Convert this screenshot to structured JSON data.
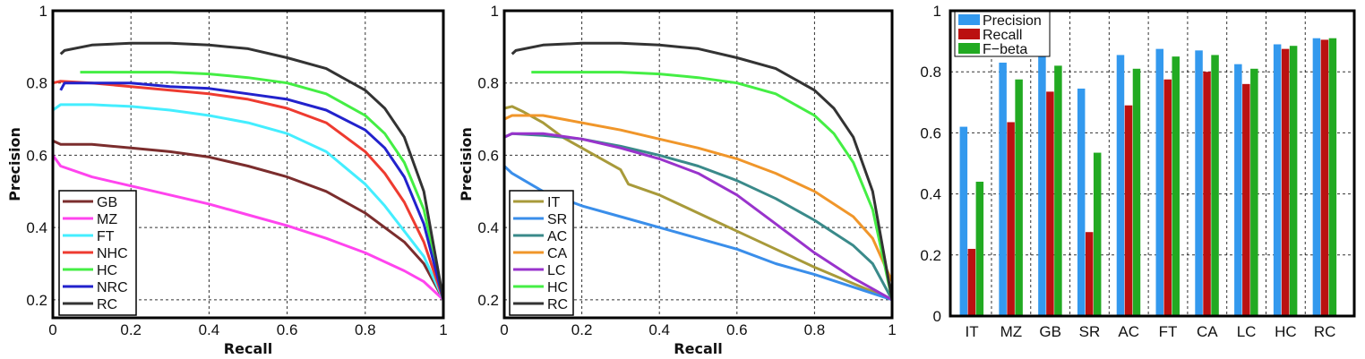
{
  "chart_data": [
    {
      "type": "line",
      "xlabel": "Recall",
      "ylabel": "Precision",
      "xlim": [
        0,
        1
      ],
      "ylim": [
        0.15,
        1
      ],
      "xticks": [
        "0",
        "0.2",
        "0.4",
        "0.6",
        "0.8",
        "1"
      ],
      "yticks": [
        "0.2",
        "0.4",
        "0.6",
        "0.8",
        "1"
      ],
      "grid": true,
      "legend": "bottom-left",
      "series": [
        {
          "name": "GB",
          "color": "#7b2d2d",
          "x": [
            0,
            0.02,
            0.1,
            0.2,
            0.3,
            0.4,
            0.5,
            0.6,
            0.7,
            0.8,
            0.9,
            0.95,
            1.0
          ],
          "y": [
            0.64,
            0.63,
            0.63,
            0.62,
            0.61,
            0.595,
            0.57,
            0.54,
            0.5,
            0.44,
            0.36,
            0.3,
            0.2
          ]
        },
        {
          "name": "MZ",
          "color": "#ff44ee",
          "x": [
            0,
            0.02,
            0.1,
            0.2,
            0.3,
            0.4,
            0.5,
            0.6,
            0.7,
            0.8,
            0.9,
            0.95,
            1.0
          ],
          "y": [
            0.6,
            0.57,
            0.54,
            0.515,
            0.49,
            0.465,
            0.435,
            0.405,
            0.37,
            0.33,
            0.28,
            0.25,
            0.2
          ]
        },
        {
          "name": "FT",
          "color": "#44eeff",
          "x": [
            0,
            0.02,
            0.1,
            0.2,
            0.3,
            0.4,
            0.5,
            0.6,
            0.7,
            0.8,
            0.85,
            0.9,
            0.95,
            1.0
          ],
          "y": [
            0.725,
            0.74,
            0.74,
            0.735,
            0.725,
            0.71,
            0.69,
            0.66,
            0.61,
            0.52,
            0.46,
            0.39,
            0.32,
            0.2
          ]
        },
        {
          "name": "NHC",
          "color": "#ee3b30",
          "x": [
            0,
            0.02,
            0.1,
            0.2,
            0.3,
            0.4,
            0.5,
            0.6,
            0.7,
            0.8,
            0.85,
            0.9,
            0.95,
            1.0
          ],
          "y": [
            0.8,
            0.805,
            0.8,
            0.79,
            0.78,
            0.77,
            0.755,
            0.73,
            0.69,
            0.61,
            0.55,
            0.47,
            0.36,
            0.2
          ]
        },
        {
          "name": "HC",
          "color": "#44ee44",
          "x": [
            0.07,
            0.1,
            0.2,
            0.3,
            0.4,
            0.5,
            0.6,
            0.7,
            0.8,
            0.85,
            0.9,
            0.95,
            1.0
          ],
          "y": [
            0.83,
            0.83,
            0.83,
            0.83,
            0.825,
            0.815,
            0.8,
            0.77,
            0.71,
            0.66,
            0.58,
            0.45,
            0.2
          ]
        },
        {
          "name": "NRC",
          "color": "#2222cc",
          "x": [
            0.02,
            0.03,
            0.1,
            0.2,
            0.3,
            0.4,
            0.5,
            0.6,
            0.7,
            0.8,
            0.85,
            0.9,
            0.95,
            1.0
          ],
          "y": [
            0.78,
            0.8,
            0.8,
            0.8,
            0.79,
            0.785,
            0.77,
            0.755,
            0.725,
            0.67,
            0.62,
            0.54,
            0.41,
            0.2
          ]
        },
        {
          "name": "RC",
          "color": "#333333",
          "x": [
            0.02,
            0.03,
            0.1,
            0.2,
            0.3,
            0.4,
            0.5,
            0.6,
            0.7,
            0.8,
            0.85,
            0.9,
            0.95,
            1.0
          ],
          "y": [
            0.88,
            0.89,
            0.905,
            0.91,
            0.91,
            0.905,
            0.895,
            0.87,
            0.84,
            0.78,
            0.73,
            0.65,
            0.5,
            0.2
          ]
        }
      ]
    },
    {
      "type": "line",
      "xlabel": "Recall",
      "ylabel": "Precision",
      "xlim": [
        0,
        1
      ],
      "ylim": [
        0.15,
        1
      ],
      "xticks": [
        "0",
        "0.2",
        "0.4",
        "0.6",
        "0.8",
        "1"
      ],
      "yticks": [
        "0.2",
        "0.4",
        "0.6",
        "0.8",
        "1"
      ],
      "grid": true,
      "legend": "bottom-left",
      "series": [
        {
          "name": "IT",
          "color": "#a89a3a",
          "x": [
            0,
            0.02,
            0.05,
            0.1,
            0.15,
            0.2,
            0.25,
            0.3,
            0.32,
            0.4,
            0.5,
            0.6,
            0.7,
            0.8,
            0.9,
            1.0
          ],
          "y": [
            0.73,
            0.735,
            0.72,
            0.69,
            0.65,
            0.62,
            0.59,
            0.56,
            0.52,
            0.49,
            0.44,
            0.39,
            0.34,
            0.29,
            0.245,
            0.2
          ]
        },
        {
          "name": "SR",
          "color": "#3a8eea",
          "x": [
            0,
            0.02,
            0.1,
            0.2,
            0.3,
            0.4,
            0.5,
            0.6,
            0.7,
            0.8,
            0.9,
            1.0
          ],
          "y": [
            0.57,
            0.55,
            0.5,
            0.46,
            0.43,
            0.4,
            0.37,
            0.34,
            0.3,
            0.27,
            0.235,
            0.2
          ]
        },
        {
          "name": "AC",
          "color": "#3a8a8a",
          "x": [
            0,
            0.02,
            0.1,
            0.2,
            0.3,
            0.4,
            0.5,
            0.6,
            0.7,
            0.8,
            0.9,
            0.95,
            1.0
          ],
          "y": [
            0.65,
            0.66,
            0.655,
            0.645,
            0.625,
            0.6,
            0.57,
            0.53,
            0.48,
            0.42,
            0.35,
            0.3,
            0.2
          ]
        },
        {
          "name": "CA",
          "color": "#f0962a",
          "x": [
            0,
            0.02,
            0.1,
            0.2,
            0.3,
            0.4,
            0.5,
            0.6,
            0.7,
            0.8,
            0.9,
            0.95,
            1.0
          ],
          "y": [
            0.7,
            0.71,
            0.71,
            0.69,
            0.67,
            0.645,
            0.62,
            0.59,
            0.55,
            0.5,
            0.43,
            0.37,
            0.25
          ]
        },
        {
          "name": "LC",
          "color": "#9933cc",
          "x": [
            0,
            0.02,
            0.1,
            0.2,
            0.3,
            0.4,
            0.5,
            0.6,
            0.7,
            0.8,
            0.9,
            1.0
          ],
          "y": [
            0.65,
            0.66,
            0.66,
            0.645,
            0.62,
            0.59,
            0.55,
            0.49,
            0.41,
            0.33,
            0.26,
            0.2
          ]
        },
        {
          "name": "HC",
          "color": "#44ee44",
          "x": [
            0.07,
            0.1,
            0.2,
            0.3,
            0.4,
            0.5,
            0.6,
            0.7,
            0.8,
            0.85,
            0.9,
            0.95,
            1.0
          ],
          "y": [
            0.83,
            0.83,
            0.83,
            0.83,
            0.825,
            0.815,
            0.8,
            0.77,
            0.71,
            0.66,
            0.58,
            0.45,
            0.2
          ]
        },
        {
          "name": "RC",
          "color": "#333333",
          "x": [
            0.02,
            0.03,
            0.1,
            0.2,
            0.3,
            0.4,
            0.5,
            0.6,
            0.7,
            0.8,
            0.85,
            0.9,
            0.95,
            1.0
          ],
          "y": [
            0.88,
            0.89,
            0.905,
            0.91,
            0.91,
            0.905,
            0.895,
            0.87,
            0.84,
            0.78,
            0.73,
            0.65,
            0.5,
            0.2
          ]
        }
      ]
    },
    {
      "type": "bar",
      "categories": [
        "IT",
        "MZ",
        "GB",
        "SR",
        "AC",
        "FT",
        "CA",
        "LC",
        "HC",
        "RC"
      ],
      "ylim": [
        0,
        1
      ],
      "yticks": [
        "0",
        "0.2",
        "0.4",
        "0.6",
        "0.8",
        "1"
      ],
      "grid": true,
      "legend": "top-left",
      "series": [
        {
          "name": "Precision",
          "color": "#3399ee",
          "values": [
            0.62,
            0.83,
            0.85,
            0.745,
            0.855,
            0.875,
            0.87,
            0.825,
            0.89,
            0.91
          ]
        },
        {
          "name": "Recall",
          "color": "#bb1111",
          "values": [
            0.22,
            0.635,
            0.735,
            0.275,
            0.69,
            0.775,
            0.8,
            0.76,
            0.875,
            0.905
          ]
        },
        {
          "name": "F−beta",
          "color": "#22aa22",
          "values": [
            0.44,
            0.775,
            0.82,
            0.535,
            0.81,
            0.85,
            0.855,
            0.81,
            0.885,
            0.91
          ]
        }
      ]
    }
  ]
}
